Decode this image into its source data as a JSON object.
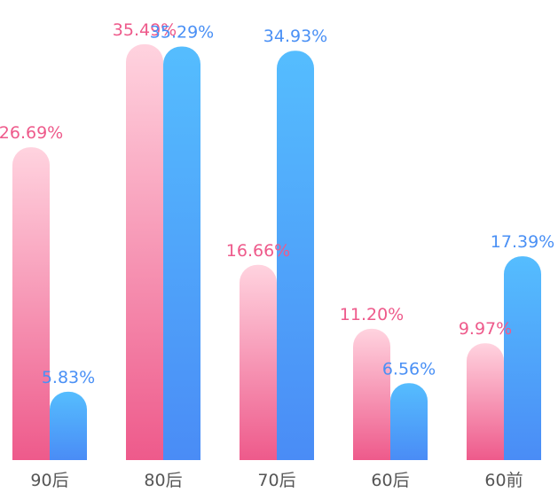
{
  "chart_data": {
    "type": "bar",
    "categories": [
      "90后",
      "80后",
      "70后",
      "60后",
      "60前"
    ],
    "series": [
      {
        "values": [
          26.69,
          35.49,
          16.66,
          11.2,
          9.97
        ],
        "labels": [
          "26.69%",
          "35.49%",
          "16.66%",
          "11.20%",
          "9.97%"
        ],
        "color": "#ee5a8b"
      },
      {
        "values": [
          5.83,
          35.29,
          34.93,
          6.56,
          17.39
        ],
        "labels": [
          "5.83%",
          "35.29%",
          "34.93%",
          "6.56%",
          "17.39%"
        ],
        "color": "#4a90f5"
      }
    ],
    "colors": {
      "pink_top": "#ffd3df",
      "pink_bottom": "#ee5a8b",
      "blue_top": "#55bdfe",
      "blue_bottom": "#4a8cf6",
      "pink_label": "#ee5a8b",
      "blue_label": "#4a90f5",
      "category_label": "#555555"
    },
    "ylim": [
      0,
      37
    ],
    "grid": false,
    "legend": "none",
    "xlabel": "",
    "ylabel": "",
    "title": ""
  }
}
